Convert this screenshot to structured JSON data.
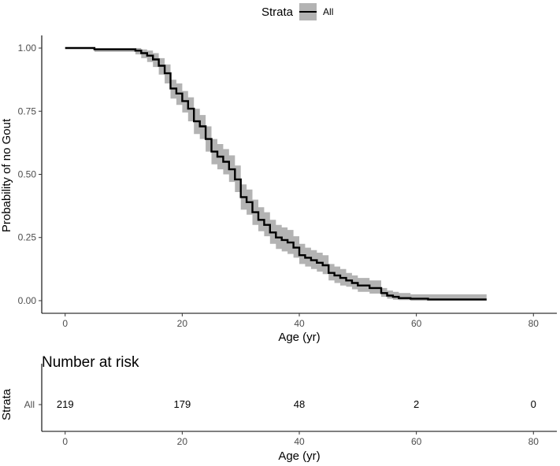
{
  "legend": {
    "title": "Strata",
    "label": "All",
    "position": "top"
  },
  "chart_data": [
    {
      "type": "line",
      "title": "",
      "xlabel": "Age (yr)",
      "ylabel": "Probability of no Gout",
      "xlim": [
        -4,
        84
      ],
      "ylim": [
        -0.05,
        1.05
      ],
      "xticks": [
        0,
        20,
        40,
        60,
        80
      ],
      "yticks": [
        "0.00",
        "0.25",
        "0.50",
        "0.75",
        "1.00"
      ],
      "ytick_values": [
        0,
        0.25,
        0.5,
        0.75,
        1.0
      ],
      "grid": false,
      "colors": {
        "line": "#000000",
        "band": "#b3b3b3"
      },
      "series": [
        {
          "name": "All",
          "x": [
            0,
            5,
            12,
            13,
            14,
            15,
            16,
            17,
            18,
            19,
            20,
            21,
            22,
            23,
            24,
            25,
            26,
            27,
            28,
            29,
            30,
            31,
            32,
            33,
            34,
            35,
            36,
            37,
            38,
            39,
            40,
            41,
            42,
            43,
            44,
            45,
            46,
            47,
            48,
            49,
            50,
            52,
            54,
            55,
            56,
            57,
            59,
            62,
            72
          ],
          "y": [
            1.0,
            0.995,
            0.99,
            0.98,
            0.97,
            0.955,
            0.93,
            0.9,
            0.84,
            0.82,
            0.79,
            0.76,
            0.71,
            0.69,
            0.64,
            0.59,
            0.57,
            0.55,
            0.52,
            0.48,
            0.41,
            0.39,
            0.35,
            0.32,
            0.3,
            0.27,
            0.25,
            0.24,
            0.23,
            0.21,
            0.18,
            0.17,
            0.16,
            0.15,
            0.14,
            0.11,
            0.1,
            0.09,
            0.08,
            0.07,
            0.06,
            0.05,
            0.03,
            0.02,
            0.015,
            0.01,
            0.008,
            0.005,
            0.005
          ],
          "ci_lower": [
            1.0,
            0.985,
            0.975,
            0.96,
            0.945,
            0.925,
            0.895,
            0.86,
            0.8,
            0.775,
            0.745,
            0.71,
            0.66,
            0.64,
            0.59,
            0.54,
            0.52,
            0.5,
            0.47,
            0.43,
            0.36,
            0.34,
            0.3,
            0.275,
            0.255,
            0.225,
            0.205,
            0.195,
            0.185,
            0.17,
            0.145,
            0.135,
            0.125,
            0.115,
            0.105,
            0.08,
            0.07,
            0.06,
            0.055,
            0.045,
            0.035,
            0.028,
            0.015,
            0.008,
            0.004,
            0.002,
            0.0,
            0.0,
            0.0
          ],
          "ci_upper": [
            1.0,
            1.0,
            1.0,
            0.995,
            0.99,
            0.98,
            0.96,
            0.935,
            0.875,
            0.86,
            0.83,
            0.805,
            0.76,
            0.735,
            0.69,
            0.64,
            0.62,
            0.6,
            0.575,
            0.535,
            0.46,
            0.44,
            0.4,
            0.37,
            0.35,
            0.32,
            0.3,
            0.29,
            0.28,
            0.255,
            0.225,
            0.21,
            0.2,
            0.19,
            0.18,
            0.145,
            0.135,
            0.125,
            0.11,
            0.1,
            0.09,
            0.08,
            0.05,
            0.04,
            0.035,
            0.03,
            0.025,
            0.025,
            0.025
          ]
        }
      ]
    },
    {
      "type": "table",
      "title": "Number at risk",
      "xlabel": "Age (yr)",
      "ylabel": "Strata",
      "row_label": "All",
      "xlim": [
        -4,
        84
      ],
      "xticks": [
        0,
        20,
        40,
        60,
        80
      ],
      "x": [
        0,
        20,
        40,
        60,
        80
      ],
      "values": [
        219,
        179,
        48,
        2,
        0
      ]
    }
  ]
}
